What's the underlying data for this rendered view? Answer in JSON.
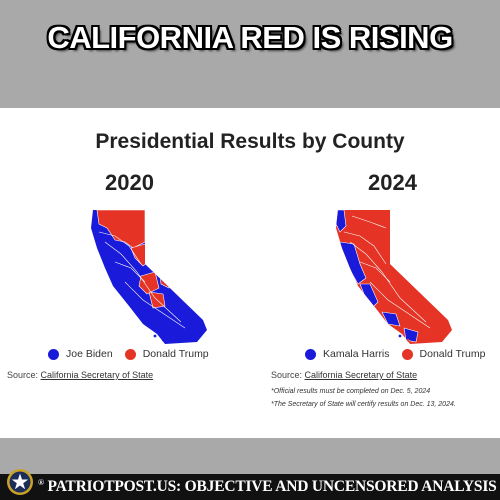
{
  "headline": "CALIFORNIA RED IS RISING",
  "title": "Presidential Results by County",
  "colors": {
    "democrat": "#1a1adb",
    "republican": "#e53425",
    "background": "#a9a9a9"
  },
  "maps": [
    {
      "year": "2020",
      "legend": [
        {
          "label": "Joe Biden",
          "color": "#1a1adb"
        },
        {
          "label": "Donald Trump",
          "color": "#e53425"
        }
      ],
      "source_prefix": "Source: ",
      "source_link": "California Secretary of State"
    },
    {
      "year": "2024",
      "legend": [
        {
          "label": "Kamala Harris",
          "color": "#1a1adb"
        },
        {
          "label": "Donald Trump",
          "color": "#e53425"
        }
      ],
      "source_prefix": "Source: ",
      "source_link": "California Secretary of State",
      "notes": [
        "*Official results must be completed on Dec. 5, 2024",
        "*The Secretary of State will certify results on Dec. 13, 2024."
      ]
    }
  ],
  "footer": {
    "logo_icon": "star-seal-icon",
    "text": "PATRIOTPOST.US: OBJECTIVE AND UNCENSORED ANALYSIS",
    "mark": "®"
  }
}
